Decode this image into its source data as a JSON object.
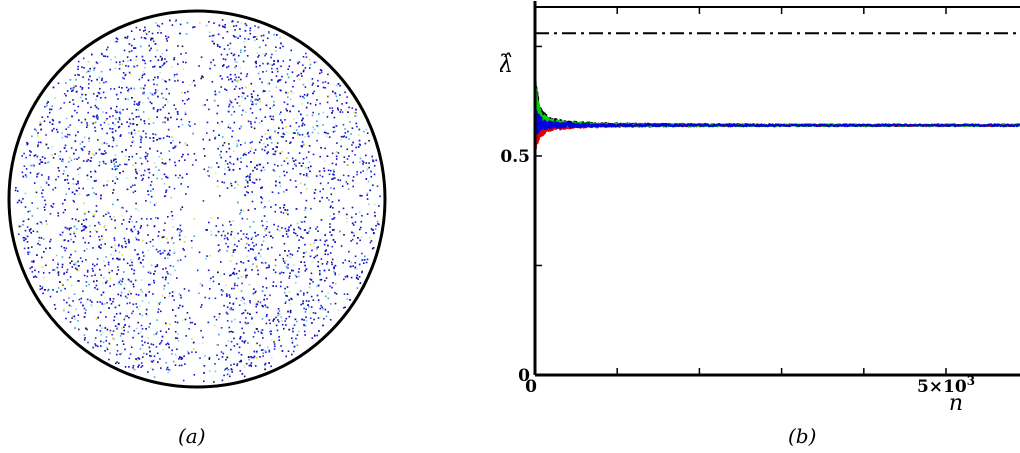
{
  "captions": {
    "a": "(a)",
    "b": "(b)"
  },
  "chart_data": [
    {
      "type": "scatter",
      "point_colors": [
        "#1010c0",
        "#2a2ae0",
        "#3fa7d8",
        "#7fd3e8",
        "#e8d838",
        "#c8e8c0",
        "#101030"
      ],
      "note": "(a)"
    },
    {
      "type": "line",
      "xlabel": "n",
      "ylabel": "λ̂",
      "xlim": [
        0,
        5900
      ],
      "ylim": [
        0,
        0.84
      ],
      "x_ticks": [
        {
          "value": 0,
          "label": "0"
        },
        {
          "value": 1000,
          "label": ""
        },
        {
          "value": 2000,
          "label": ""
        },
        {
          "value": 3000,
          "label": ""
        },
        {
          "value": 4000,
          "label": ""
        },
        {
          "value": 5000,
          "label": "5×10"
        }
      ],
      "x_tick_exponent": "3",
      "y_ticks": [
        {
          "value": 0,
          "label": "0"
        },
        {
          "value": 0.25,
          "label": ""
        },
        {
          "value": 0.5,
          "label": "0.5"
        },
        {
          "value": 0.75,
          "label": ""
        }
      ],
      "reference_line": {
        "y": 0.78,
        "style": "dash-dot",
        "color": "#000000"
      },
      "series": [
        {
          "color": "#000000",
          "x": [
            0,
            50,
            100,
            200,
            400,
            800,
            1600,
            3200,
            5900
          ],
          "y": [
            0.64,
            0.6,
            0.585,
            0.578,
            0.574,
            0.572,
            0.571,
            0.57,
            0.57
          ],
          "noise": [
            0.04,
            0.02,
            0.015,
            0.008,
            0.005,
            0.003,
            0.0025,
            0.002,
            0.002
          ]
        },
        {
          "color": "#e00000",
          "x": [
            0,
            50,
            100,
            200,
            400,
            800,
            1600,
            3200,
            5900
          ],
          "y": [
            0.55,
            0.56,
            0.562,
            0.566,
            0.568,
            0.569,
            0.57,
            0.57,
            0.57
          ],
          "noise": [
            0.04,
            0.02,
            0.015,
            0.008,
            0.005,
            0.003,
            0.0025,
            0.002,
            0.002
          ]
        },
        {
          "color": "#00d000",
          "x": [
            0,
            50,
            100,
            200,
            400,
            800,
            1600,
            3200,
            5900
          ],
          "y": [
            0.62,
            0.59,
            0.58,
            0.575,
            0.572,
            0.571,
            0.57,
            0.57,
            0.57
          ],
          "noise": [
            0.05,
            0.02,
            0.015,
            0.008,
            0.005,
            0.003,
            0.0025,
            0.002,
            0.002
          ]
        },
        {
          "color": "#0000e0",
          "x": [
            0,
            50,
            100,
            200,
            400,
            800,
            1600,
            3200,
            5900
          ],
          "y": [
            0.58,
            0.575,
            0.572,
            0.571,
            0.57,
            0.57,
            0.57,
            0.57,
            0.57
          ],
          "noise": [
            0.04,
            0.018,
            0.012,
            0.007,
            0.005,
            0.003,
            0.0025,
            0.002,
            0.002
          ]
        }
      ]
    }
  ]
}
